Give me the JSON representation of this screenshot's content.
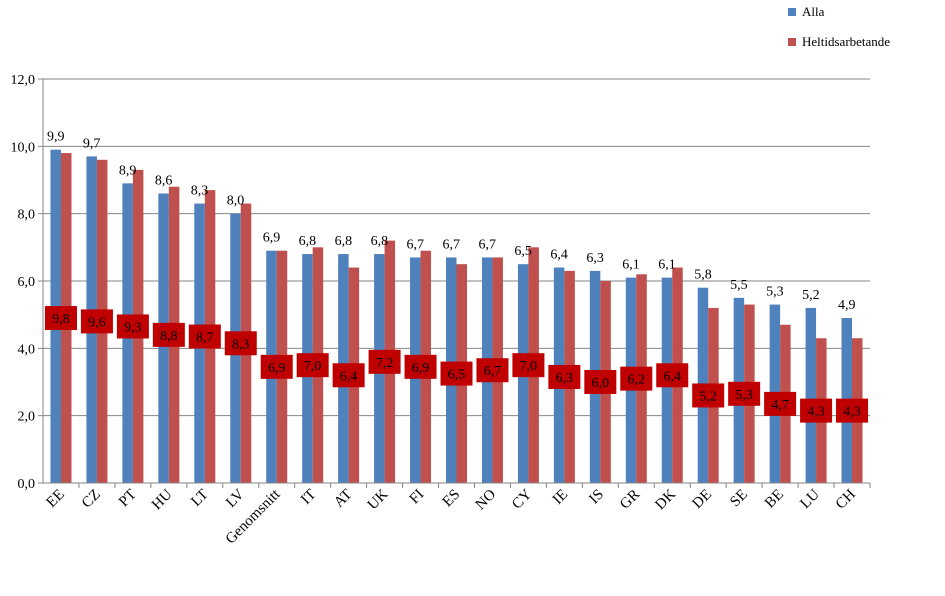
{
  "chart_data": {
    "type": "bar",
    "categories": [
      "EE",
      "CZ",
      "PT",
      "HU",
      "LT",
      "LV",
      "Genomsnitt",
      "IT",
      "AT",
      "UK",
      "FI",
      "ES",
      "NO",
      "CY",
      "IE",
      "IS",
      "GR",
      "DK",
      "DE",
      "SE",
      "BE",
      "LU",
      "CH"
    ],
    "series": [
      {
        "name": "Alla",
        "color": "#4f81bd",
        "values": [
          9.9,
          9.7,
          8.9,
          8.6,
          8.3,
          8.0,
          6.9,
          6.8,
          6.8,
          6.8,
          6.7,
          6.7,
          6.7,
          6.5,
          6.4,
          6.3,
          6.1,
          6.1,
          5.8,
          5.5,
          5.3,
          5.2,
          4.9
        ],
        "labels": [
          "9,9",
          "9,7",
          "8,9",
          "8,6",
          "8,3",
          "8,0",
          "6,9",
          "6,8",
          "6,8",
          "6,8",
          "6,7",
          "6,7",
          "6,7",
          "6,5",
          "6,4",
          "6,3",
          "6,1",
          "6,1",
          "5,8",
          "5,5",
          "5,3",
          "5,2",
          "4,9"
        ]
      },
      {
        "name": "Heltidsarbetande",
        "color": "#c0504d",
        "label_bg": "#c00000",
        "values": [
          9.8,
          9.6,
          9.3,
          8.8,
          8.7,
          8.3,
          6.9,
          7.0,
          6.4,
          7.2,
          6.9,
          6.5,
          6.7,
          7.0,
          6.3,
          6.0,
          6.2,
          6.4,
          5.2,
          5.3,
          4.7,
          4.3,
          4.3
        ],
        "labels": [
          "9,8",
          "9,6",
          "9,3",
          "8,8",
          "8,7",
          "8,3",
          "6,9",
          "7,0",
          "6,4",
          "7,2",
          "6,9",
          "6,5",
          "6,7",
          "7,0",
          "6,3",
          "6,0",
          "6,2",
          "6,4",
          "5,2",
          "5,3",
          "4,7",
          "4,3",
          "4,3"
        ]
      }
    ],
    "ylim": [
      0,
      12
    ],
    "yticks": [
      0,
      2,
      4,
      6,
      8,
      10,
      12
    ],
    "ytick_labels": [
      "0,0",
      "2,0",
      "4,0",
      "6,0",
      "8,0",
      "10,0",
      "12,0"
    ],
    "grid": true,
    "legend_position": "top-right",
    "title": "",
    "xlabel": "",
    "ylabel": ""
  }
}
